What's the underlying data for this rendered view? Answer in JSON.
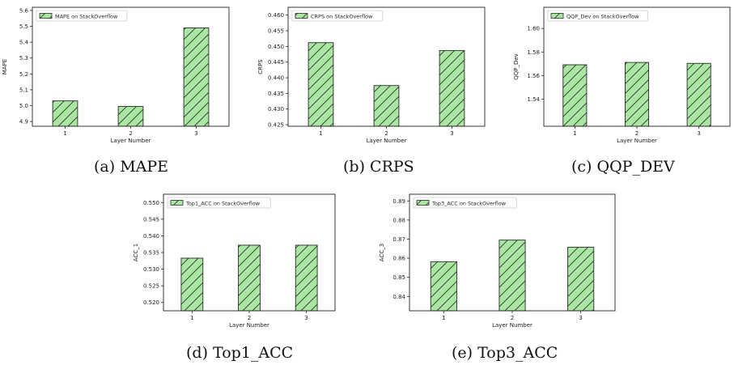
{
  "style": {
    "bar_fill": "#a8e6a1",
    "bar_edge": "#2b2b2b",
    "hatch": "diagonal"
  },
  "chart_data": [
    {
      "type": "bar",
      "categories": [
        "1",
        "2",
        "3"
      ],
      "xlabel": "Layer Number",
      "ylabel": "MAPE",
      "ylim": [
        4.87,
        5.62
      ],
      "yticks": [
        "4.9",
        "5.0",
        "5.1",
        "5.2",
        "5.3",
        "5.4",
        "5.5",
        "5.6"
      ],
      "legend": "MAPE on StackOverflow",
      "legend_position": "top-left",
      "series": [
        {
          "name": "MAPE on StackOverflow",
          "values": [
            5.03,
            4.995,
            5.49
          ]
        }
      ],
      "caption": "(a) MAPE"
    },
    {
      "type": "bar",
      "categories": [
        "1",
        "2",
        "3"
      ],
      "xlabel": "Layer Number",
      "ylabel": "CRPS",
      "ylim": [
        0.4245,
        0.4625
      ],
      "yticks": [
        "0.425",
        "0.430",
        "0.435",
        "0.440",
        "0.445",
        "0.450",
        "0.455",
        "0.460"
      ],
      "legend": "CRPS on StackOverflow",
      "legend_position": "top-left",
      "series": [
        {
          "name": "CRPS on StackOverflow",
          "values": [
            0.4512,
            0.4375,
            0.4487
          ]
        }
      ],
      "caption": "(b) CRPS"
    },
    {
      "type": "bar",
      "categories": [
        "1",
        "2",
        "3"
      ],
      "xlabel": "Layer Number",
      "ylabel": "QQP_Dev",
      "ylim": [
        1.517,
        1.618
      ],
      "yticks": [
        "1.54",
        "1.56",
        "1.58",
        "1.60"
      ],
      "legend": "QQP_Dev on StackOverflow",
      "legend_position": "top-left",
      "series": [
        {
          "name": "QQP_Dev on StackOverflow",
          "values": [
            1.5692,
            1.5712,
            1.5704
          ]
        }
      ],
      "caption": "(c) QQP_DEV"
    },
    {
      "type": "bar",
      "categories": [
        "1",
        "2",
        "3"
      ],
      "xlabel": "Layer Number",
      "ylabel": "ACC_1",
      "ylim": [
        0.5175,
        0.5525
      ],
      "yticks": [
        "0.520",
        "0.525",
        "0.530",
        "0.535",
        "0.540",
        "0.545",
        "0.550"
      ],
      "legend": "Top1_ACC on StackOverflow",
      "legend_position": "top-left",
      "series": [
        {
          "name": "Top1_ACC on StackOverflow",
          "values": [
            0.5333,
            0.5372,
            0.5372
          ]
        }
      ],
      "caption": "(d) Top1_ACC"
    },
    {
      "type": "bar",
      "categories": [
        "1",
        "2",
        "3"
      ],
      "xlabel": "Layer Number",
      "ylabel": "ACC_3",
      "ylim": [
        0.8325,
        0.8935
      ],
      "yticks": [
        "0.84",
        "0.85",
        "0.86",
        "0.87",
        "0.88",
        "0.89"
      ],
      "legend": "Top3_ACC on StackOverflow",
      "legend_position": "top-left",
      "series": [
        {
          "name": "Top3_ACC on StackOverflow",
          "values": [
            0.8582,
            0.8695,
            0.8658
          ]
        }
      ],
      "caption": "(e) Top3_ACC"
    }
  ]
}
